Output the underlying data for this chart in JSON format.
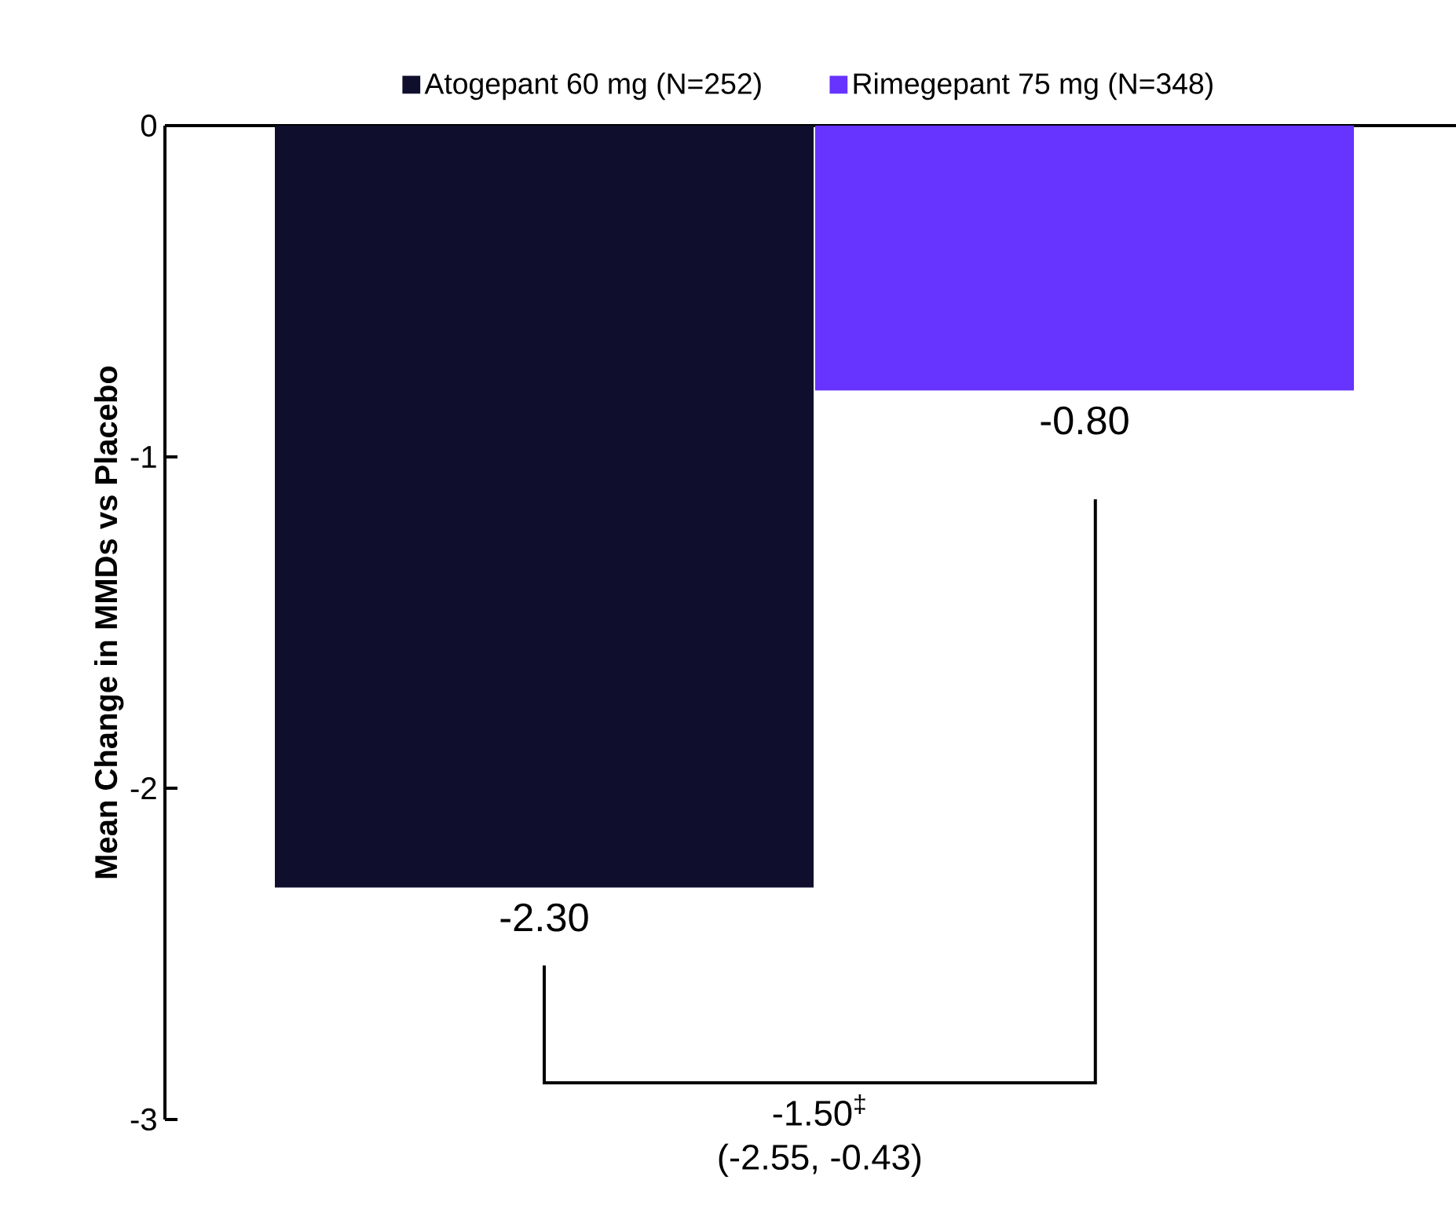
{
  "chart_data": {
    "type": "bar",
    "ylabel": "**Mean Change in MMDs vs Placebo**",
    "categories": [
      null,
      null
    ],
    "series": [
      {
        "name": "Atogepant 60 mg (N=252)",
        "color": "#0f0f2d",
        "values": [
          -2.3,
          null
        ],
        "value_labels": [
          "-2.30",
          null
        ]
      },
      {
        "name": "Rimegepant 75 mg (N=348)",
        "color": "#6633ff",
        "values": [
          null,
          -0.8
        ],
        "value_labels": [
          null,
          "-0.80"
        ]
      }
    ],
    "ylim": [
      -3,
      0
    ],
    "yticks": [
      0,
      -1,
      -2,
      -3
    ],
    "grid": false,
    "legend": "top",
    "annotations": [
      "-1.50$^{‡}$",
      "(-2.55, -0.43)"
    ]
  }
}
